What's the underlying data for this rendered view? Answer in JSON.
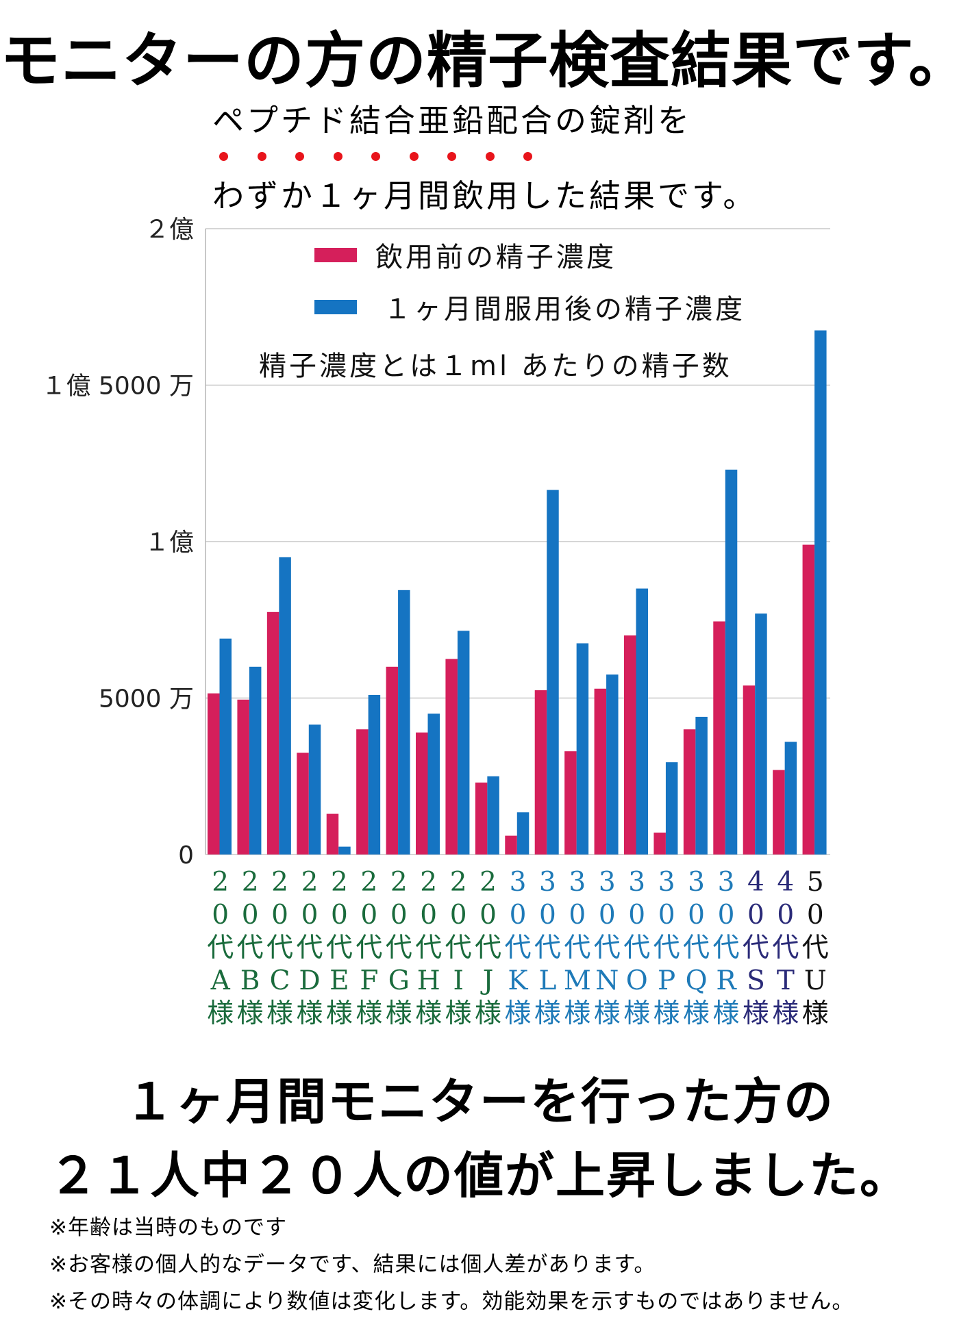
{
  "title": "モニターの方の精子検査結果です。",
  "intro": {
    "line1": "ペプチド結合亜鉛配合の錠剤を",
    "line2": "わずか１ヶ月間飲用した結果です。",
    "emphasis_color": "#e8141b",
    "emphasis_count": 9
  },
  "chart_data": {
    "type": "bar",
    "title": "",
    "xlabel": "",
    "ylabel": "",
    "ylim": [
      0,
      200000000
    ],
    "yticks": [
      {
        "value": 0,
        "label": "0"
      },
      {
        "value": 50000000,
        "label": "5000 万"
      },
      {
        "value": 100000000,
        "label": "１億"
      },
      {
        "value": 150000000,
        "label": "１億 5000 万"
      },
      {
        "value": 200000000,
        "label": "２億"
      }
    ],
    "grid": true,
    "legend_position": "top",
    "legend_note": "精子濃度とは１ml あたりの精子数",
    "categories": [
      "20代A様",
      "20代B様",
      "20代C様",
      "20代D様",
      "20代E様",
      "20代F様",
      "20代G様",
      "20代H様",
      "20代I様",
      "20代J様",
      "30代K様",
      "30代L様",
      "30代M様",
      "30代N様",
      "30代O様",
      "30代P様",
      "30代Q様",
      "30代R様",
      "40代S様",
      "40代T様",
      "50代U様"
    ],
    "category_labels": [
      {
        "age": [
          "2",
          "0",
          "代"
        ],
        "name": "A",
        "suffix": "様",
        "color": "#1a6b3c"
      },
      {
        "age": [
          "2",
          "0",
          "代"
        ],
        "name": "B",
        "suffix": "様",
        "color": "#1a6b3c"
      },
      {
        "age": [
          "2",
          "0",
          "代"
        ],
        "name": "C",
        "suffix": "様",
        "color": "#1a6b3c"
      },
      {
        "age": [
          "2",
          "0",
          "代"
        ],
        "name": "D",
        "suffix": "様",
        "color": "#1a6b3c"
      },
      {
        "age": [
          "2",
          "0",
          "代"
        ],
        "name": "E",
        "suffix": "様",
        "color": "#1a6b3c"
      },
      {
        "age": [
          "2",
          "0",
          "代"
        ],
        "name": "F",
        "suffix": "様",
        "color": "#1a6b3c"
      },
      {
        "age": [
          "2",
          "0",
          "代"
        ],
        "name": "G",
        "suffix": "様",
        "color": "#1a6b3c"
      },
      {
        "age": [
          "2",
          "0",
          "代"
        ],
        "name": "H",
        "suffix": "様",
        "color": "#1a6b3c"
      },
      {
        "age": [
          "2",
          "0",
          "代"
        ],
        "name": "I",
        "suffix": "様",
        "color": "#1a6b3c"
      },
      {
        "age": [
          "2",
          "0",
          "代"
        ],
        "name": "J",
        "suffix": "様",
        "color": "#1a6b3c"
      },
      {
        "age": [
          "3",
          "0",
          "代"
        ],
        "name": "K",
        "suffix": "様",
        "color": "#1e7ab8"
      },
      {
        "age": [
          "3",
          "0",
          "代"
        ],
        "name": "L",
        "suffix": "様",
        "color": "#1e7ab8"
      },
      {
        "age": [
          "3",
          "0",
          "代"
        ],
        "name": "M",
        "suffix": "様",
        "color": "#1e7ab8"
      },
      {
        "age": [
          "3",
          "0",
          "代"
        ],
        "name": "N",
        "suffix": "様",
        "color": "#1e7ab8"
      },
      {
        "age": [
          "3",
          "0",
          "代"
        ],
        "name": "O",
        "suffix": "様",
        "color": "#1e7ab8"
      },
      {
        "age": [
          "3",
          "0",
          "代"
        ],
        "name": "P",
        "suffix": "様",
        "color": "#1e7ab8"
      },
      {
        "age": [
          "3",
          "0",
          "代"
        ],
        "name": "Q",
        "suffix": "様",
        "color": "#1e7ab8"
      },
      {
        "age": [
          "3",
          "0",
          "代"
        ],
        "name": "R",
        "suffix": "様",
        "color": "#1e7ab8"
      },
      {
        "age": [
          "4",
          "0",
          "代"
        ],
        "name": "S",
        "suffix": "様",
        "color": "#2a2a78"
      },
      {
        "age": [
          "4",
          "0",
          "代"
        ],
        "name": "T",
        "suffix": "様",
        "color": "#2a2a78"
      },
      {
        "age": [
          "5",
          "0",
          "代"
        ],
        "name": "U",
        "suffix": "様",
        "color": "#111111"
      }
    ],
    "series": [
      {
        "name": "飲用前の精子濃度",
        "color": "#d51f5b",
        "values": [
          51500000,
          49500000,
          77500000,
          32500000,
          13000000,
          40000000,
          60000000,
          39000000,
          62500000,
          23000000,
          6000000,
          52500000,
          33000000,
          53000000,
          70000000,
          7000000,
          40000000,
          74500000,
          54000000,
          27000000,
          99000000
        ]
      },
      {
        "name": "１ヶ月間服用後の精子濃度",
        "color": "#1574c2",
        "values": [
          69000000,
          60000000,
          95000000,
          41500000,
          2500000,
          51000000,
          84500000,
          45000000,
          71500000,
          25000000,
          13500000,
          116500000,
          67500000,
          57500000,
          85000000,
          29500000,
          44000000,
          123000000,
          77000000,
          36000000,
          167500000
        ]
      }
    ]
  },
  "conclusion": {
    "line1": "１ヶ月間モニターを行った方の",
    "line2": "２１人中２０人の値が上昇しました。"
  },
  "notes": [
    "※年齢は当時のものです",
    "※お客様の個人的なデータです、結果には個人差があります。",
    "※その時々の体調により数値は変化します。効能効果を示すものではありません。"
  ]
}
